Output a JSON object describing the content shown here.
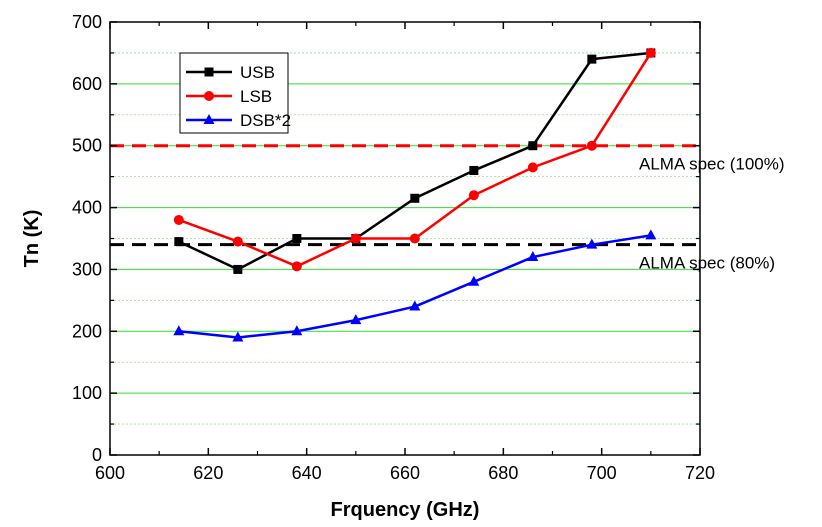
{
  "chart_data": {
    "type": "line",
    "xlabel": "Frquency (GHz)",
    "ylabel": "Tn (K)",
    "xlim": [
      600,
      720
    ],
    "ylim": [
      0,
      700
    ],
    "xticks": [
      600,
      620,
      640,
      660,
      680,
      700,
      720
    ],
    "yticks": [
      0,
      100,
      200,
      300,
      400,
      500,
      600,
      700
    ],
    "grid": true,
    "legend_position": "top-left",
    "series": [
      {
        "name": "USB",
        "color": "#000000",
        "marker": "square",
        "x": [
          614,
          626,
          638,
          650,
          662,
          674,
          686,
          698,
          710
        ],
        "y": [
          345,
          300,
          350,
          350,
          415,
          460,
          500,
          640,
          650
        ]
      },
      {
        "name": "LSB",
        "color": "#ff0000",
        "marker": "circle",
        "x": [
          614,
          626,
          638,
          650,
          662,
          674,
          686,
          698,
          710
        ],
        "y": [
          380,
          345,
          305,
          350,
          350,
          420,
          465,
          500,
          650
        ]
      },
      {
        "name": "DSB*2",
        "color": "#0000ff",
        "marker": "triangle",
        "x": [
          614,
          626,
          638,
          650,
          662,
          674,
          686,
          698,
          710
        ],
        "y": [
          200,
          190,
          200,
          218,
          240,
          280,
          320,
          340,
          355
        ]
      }
    ],
    "reference_lines": [
      {
        "y": 500,
        "color": "#ff0000",
        "label": "ALMA spec (100%)"
      },
      {
        "y": 340,
        "color": "#000000",
        "label": "ALMA spec (80%)"
      }
    ]
  }
}
